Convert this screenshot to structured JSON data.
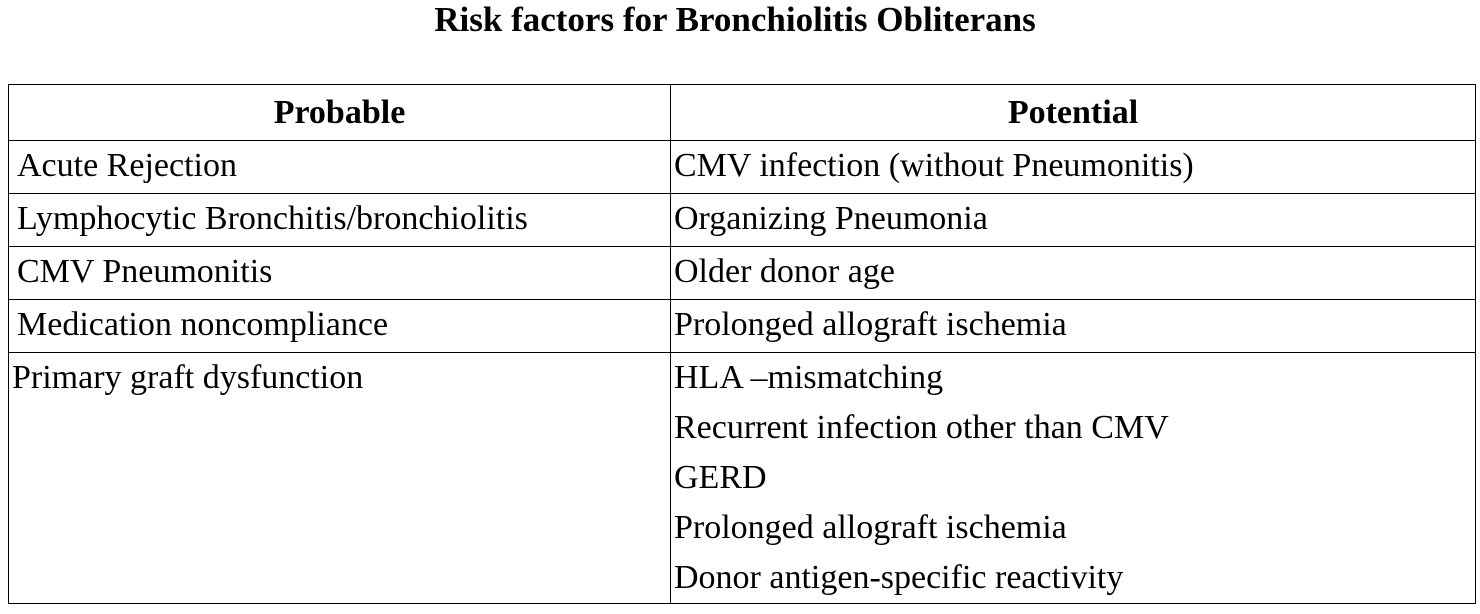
{
  "title": "Risk factors for Bronchiolitis Obliterans",
  "table": {
    "headers": [
      "Probable",
      "Potential"
    ],
    "rows": [
      {
        "probable": "Acute Rejection",
        "potential": "CMV infection (without Pneumonitis)"
      },
      {
        "probable": "Lymphocytic Bronchitis/bronchiolitis",
        "potential": "Organizing Pneumonia"
      },
      {
        "probable": "CMV Pneumonitis",
        "potential": "Older donor age"
      },
      {
        "probable": "Medication noncompliance",
        "potential": "Prolonged allograft ischemia"
      }
    ],
    "last_row": {
      "probable": "Primary graft dysfunction",
      "potential": [
        "HLA –mismatching",
        "Recurrent infection other than CMV",
        "GERD",
        "Prolonged allograft ischemia",
        "Donor antigen-specific reactivity"
      ]
    }
  }
}
